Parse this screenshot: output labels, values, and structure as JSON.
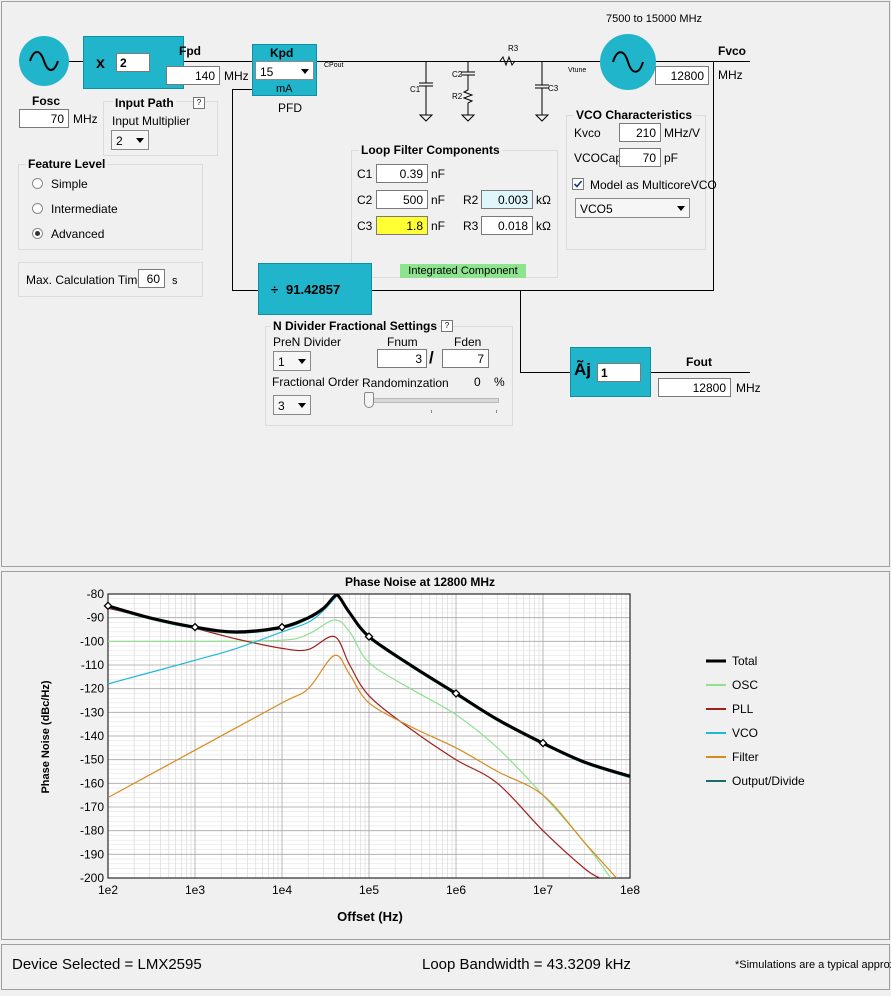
{
  "osc": {
    "label": "Fosc",
    "value": "70",
    "unit": "MHz"
  },
  "input_path": {
    "title": "Input Path",
    "help": "?",
    "mult_label": "Input Multiplier",
    "mult_value": "2"
  },
  "multiplier_block": {
    "symbol": "x",
    "value": "2"
  },
  "fpd": {
    "label": "Fpd",
    "value": "140",
    "unit": "MHz"
  },
  "pfd": {
    "title": "Kpd",
    "value": "15",
    "unit": "mA",
    "caption": "PFD",
    "cpout": "CPout"
  },
  "loop_filter": {
    "title": "Loop Filter Components",
    "c1": {
      "label": "C1",
      "value": "0.39",
      "unit": "nF"
    },
    "c2": {
      "label": "C2",
      "value": "500",
      "unit": "nF"
    },
    "c3": {
      "label": "C3",
      "value": "1.8",
      "unit": "nF"
    },
    "r2": {
      "label": "R2",
      "value": "0.003",
      "unit": "kΩ"
    },
    "r3": {
      "label": "R3",
      "value": "0.018",
      "unit": "kΩ"
    },
    "integrated": "Integrated Component",
    "sch_r3": "R3",
    "sch_c1": "C1",
    "sch_c2": "C2",
    "sch_r2": "R2",
    "sch_c3": "C3",
    "vtune": "Vtune"
  },
  "vco_range": "7500 to 15000 MHz",
  "fvco": {
    "label": "Fvco",
    "value": "12800",
    "unit": "MHz"
  },
  "vco": {
    "title": "VCO Characteristics",
    "kvco_label": "Kvco",
    "kvco": "210",
    "kvco_unit": "MHz/V",
    "cap_label": "VCOCap",
    "cap": "70",
    "cap_unit": "pF",
    "multicore_label": "Model as MulticoreVCO",
    "core": "VCO5"
  },
  "feature": {
    "title": "Feature Level",
    "options": [
      "Simple",
      "Intermediate",
      "Advanced"
    ],
    "selected": 2
  },
  "calc": {
    "label": "Max. Calculation Time",
    "value": "60",
    "unit": "s"
  },
  "ndiv": {
    "symbol": "÷",
    "value": "91.42857"
  },
  "frac": {
    "title": "N Divider Fractional Settings",
    "help": "?",
    "pren_label": "PreN Divider",
    "pren": "1",
    "order_label": "Fractional Order",
    "order": "3",
    "fnum_label": "Fnum",
    "fnum": "3",
    "fden_label": "Fden",
    "fden": "7",
    "slash": "/",
    "rand_label": "Randominzation",
    "rand": "0",
    "rand_unit": "%"
  },
  "out_div": {
    "symbol": "Ãj",
    "value": "1"
  },
  "fout": {
    "label": "Fout",
    "value": "12800",
    "unit": "MHz"
  },
  "chart_data": {
    "type": "line",
    "title": "Phase Noise at 12800 MHz",
    "xlabel": "Offset (Hz)",
    "ylabel": "Phase Noise (dBc/Hz)",
    "xscale": "log",
    "xlim": [
      100,
      100000000
    ],
    "ylim": [
      -200,
      -80
    ],
    "xticks": [
      "1e2",
      "1e3",
      "1e4",
      "1e5",
      "1e6",
      "1e7",
      "1e8"
    ],
    "yticks": [
      "-80",
      "-90",
      "-100",
      "-110",
      "-120",
      "-130",
      "-140",
      "-150",
      "-160",
      "-170",
      "-180",
      "-190",
      "-200"
    ],
    "grid": true,
    "legend": "right",
    "series": [
      {
        "name": "Total",
        "color": "#000000",
        "width": 3,
        "markers": [
          100,
          1000,
          10000,
          100000,
          1000000,
          10000000
        ],
        "x": [
          100,
          300,
          1000,
          3000,
          10000,
          20000,
          30000,
          40000,
          45000,
          60000,
          100000,
          300000,
          1000000,
          3000000,
          10000000,
          30000000,
          100000000
        ],
        "y": [
          -85,
          -90,
          -94,
          -96,
          -94,
          -90,
          -86,
          -81,
          -81,
          -88,
          -98,
          -110,
          -122,
          -133,
          -143,
          -151,
          -157
        ]
      },
      {
        "name": "OSC",
        "color": "#90e090",
        "width": 1.2,
        "x": [
          100,
          1000,
          10000,
          20000,
          40000,
          60000,
          100000,
          300000,
          1000000,
          3000000,
          10000000,
          30000000,
          60000000
        ],
        "y": [
          -100,
          -100,
          -99.5,
          -97,
          -91,
          -96,
          -109,
          -120,
          -131,
          -145,
          -165,
          -185,
          -200
        ]
      },
      {
        "name": "PLL",
        "color": "#a02020",
        "width": 1.2,
        "x": [
          100,
          300,
          1000,
          3000,
          10000,
          20000,
          40000,
          60000,
          100000,
          300000,
          1000000,
          3000000,
          10000000,
          30000000,
          45000000
        ],
        "y": [
          -86,
          -90,
          -94.5,
          -99,
          -103,
          -103.5,
          -98,
          -110,
          -123,
          -137,
          -150,
          -160,
          -180,
          -196,
          -200
        ]
      },
      {
        "name": "VCO",
        "color": "#20b8d8",
        "width": 1.2,
        "x": [
          100,
          1000,
          3000,
          10000,
          20000,
          30000,
          40000,
          45000,
          60000,
          100000,
          300000,
          1000000,
          3000000,
          10000000,
          30000000,
          100000000
        ],
        "y": [
          -118,
          -108,
          -103,
          -96,
          -92,
          -87,
          -82,
          -81,
          -88,
          -98,
          -110,
          -122,
          -133,
          -143,
          -151,
          -157
        ]
      },
      {
        "name": "Filter",
        "color": "#d88a20",
        "width": 1.2,
        "x": [
          100,
          1000,
          10000,
          20000,
          40000,
          60000,
          100000,
          300000,
          1000000,
          3000000,
          10000000,
          30000000,
          70000000
        ],
        "y": [
          -166,
          -146,
          -126,
          -120,
          -106,
          -114,
          -126,
          -136,
          -145,
          -155,
          -165,
          -185,
          -200
        ]
      },
      {
        "name": "Output/Divide",
        "color": "#1a6a70",
        "width": 1.5,
        "x": [
          100,
          300,
          1000,
          3000,
          10000,
          20000,
          30000,
          40000,
          45000,
          60000,
          100000,
          300000,
          1000000,
          3000000,
          10000000,
          30000000,
          100000000
        ],
        "y": [
          -85.5,
          -90.5,
          -94.5,
          -96.5,
          -94.5,
          -90.5,
          -86.5,
          -81.5,
          -81.5,
          -88.5,
          -98.5,
          -110.5,
          -122.5,
          -133.5,
          -143.5,
          -151.5,
          -157.5
        ]
      }
    ]
  },
  "status": {
    "device": "Device Selected = LMX2595",
    "bandwidth": "Loop Bandwidth = 43.3209 kHz",
    "note": "*Simulations are a typical approxir"
  }
}
